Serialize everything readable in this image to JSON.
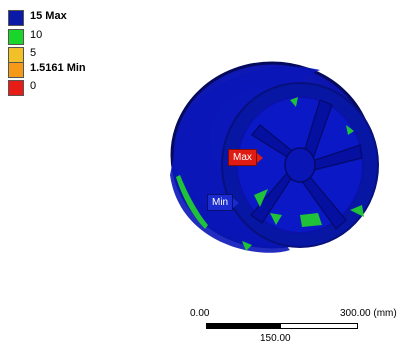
{
  "legend": {
    "entries": [
      {
        "label": "15 Max",
        "bold": true,
        "color": "#0b1aa6"
      },
      {
        "label": "10",
        "bold": false,
        "color": "#1bd62a"
      },
      {
        "label": "5",
        "bold": false,
        "color": "#f2c12a"
      },
      {
        "label": "1.5161 Min",
        "bold": true,
        "color": "#f59a18"
      },
      {
        "label": "0",
        "bold": false,
        "color": "#e81c17"
      }
    ]
  },
  "viewport": {
    "max_probe_label": "Max",
    "min_probe_label": "Min",
    "model_color": "#0d14b8",
    "stress_color": "#20c23a"
  },
  "scale_bar": {
    "start_label": "0.00",
    "end_label": "300.00 (mm)",
    "mid_label": "150.00"
  }
}
